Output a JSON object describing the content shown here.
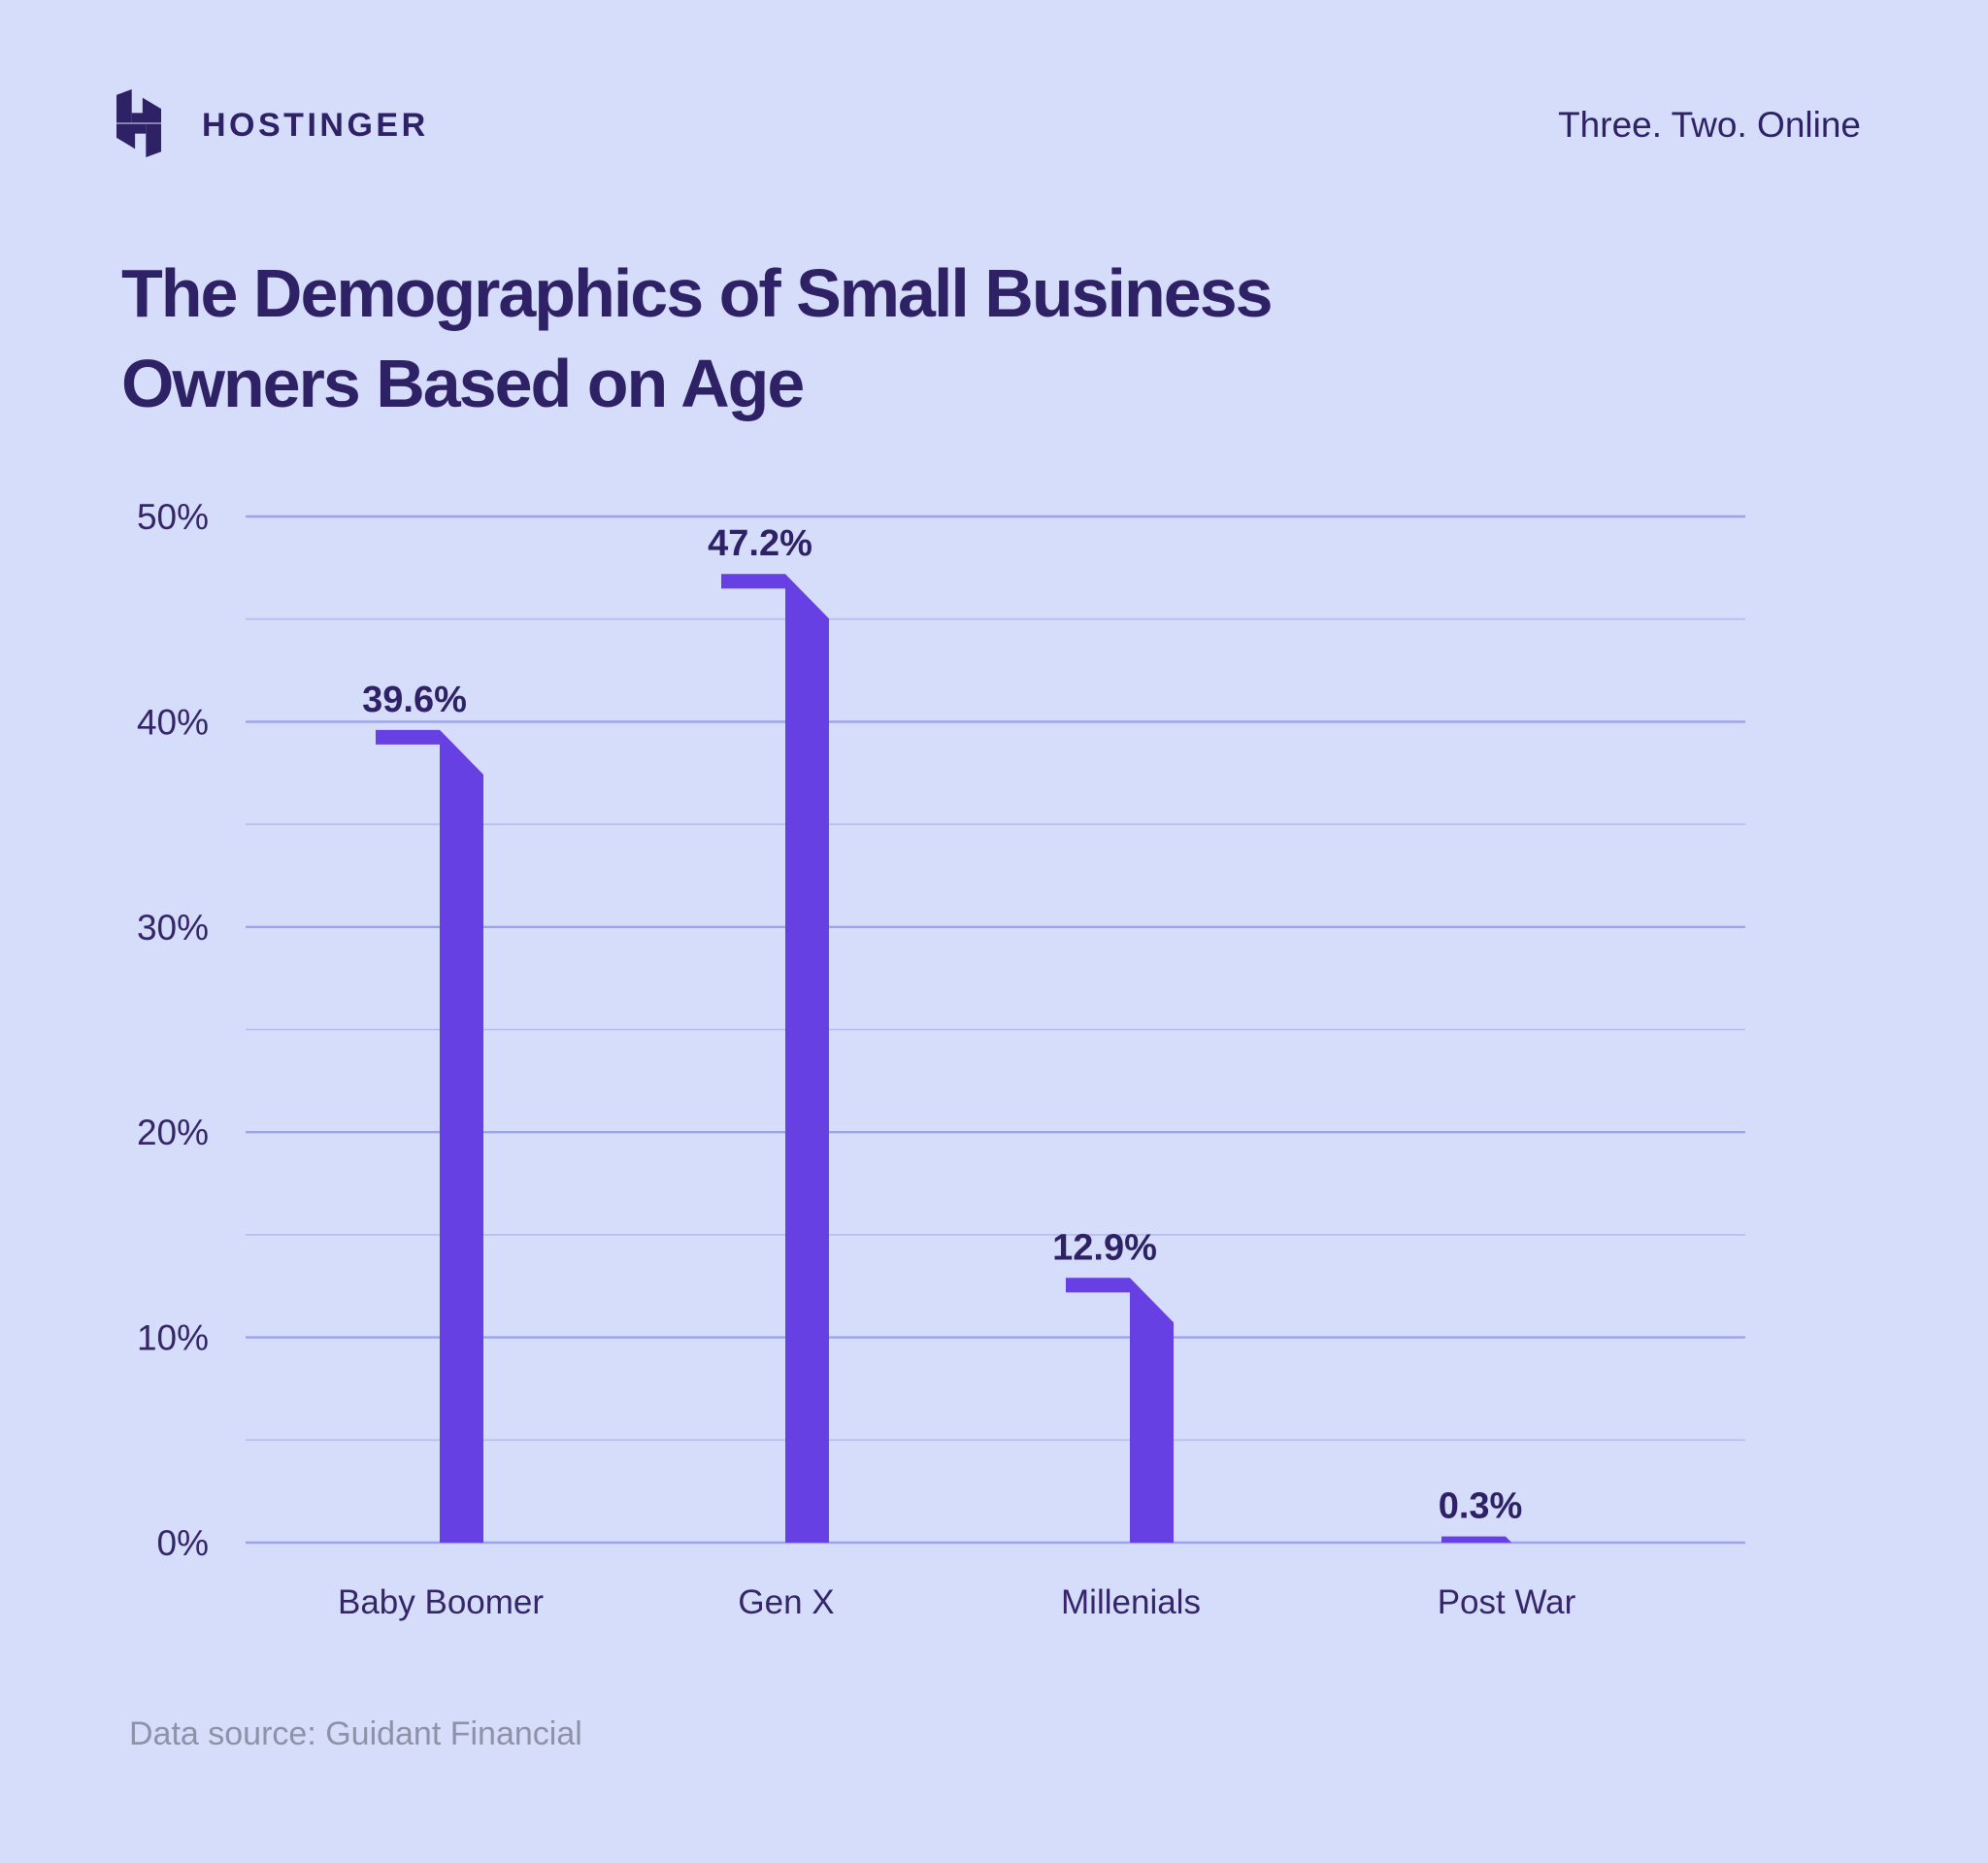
{
  "header": {
    "brand": "HOSTINGER",
    "tagline": "Three. Two. Online"
  },
  "title_display": "The Demographics of Small Business\nOwners Based on Age",
  "footer": {
    "data_source": "Data source: Guidant Financial"
  },
  "colors": {
    "background": "#D6DDFB",
    "bar": "#6640E3",
    "heading": "#2F2166",
    "axis_text": "#352569",
    "gridline_major": "#9BA3EA",
    "gridline_minor": "#B4BBF2",
    "source_text": "#8E92A6",
    "logo": "#2F2166"
  },
  "chart_data": {
    "type": "bar",
    "title": "The Demographics of Small Business Owners Based on Age",
    "categories": [
      "Baby Boomer",
      "Gen X",
      "Millenials",
      "Post War"
    ],
    "values": [
      39.6,
      47.2,
      12.9,
      0.3
    ],
    "value_labels": [
      "39.6%",
      "47.2%",
      "12.9%",
      "0.3%"
    ],
    "xlabel": "",
    "ylabel": "",
    "ylim": [
      0,
      50
    ],
    "yticks": [
      0,
      10,
      20,
      30,
      40,
      50
    ],
    "ytick_labels": [
      "0%",
      "10%",
      "20%",
      "30%",
      "40%",
      "50%"
    ],
    "minor_grid_step": 5,
    "grid": "horizontal",
    "legend": "none",
    "bar_style": "purple flag-shaped bars with diagonal fold at top"
  }
}
